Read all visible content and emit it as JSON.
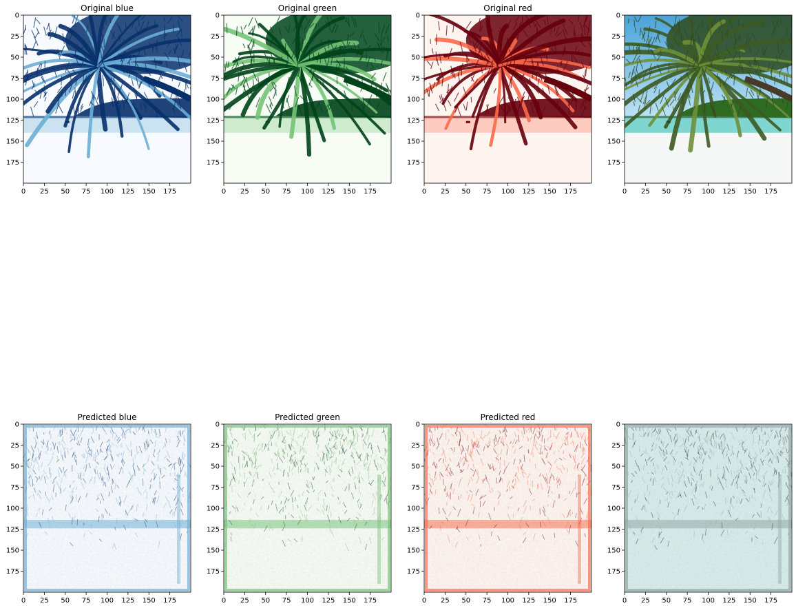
{
  "figure": {
    "background": "#ffffff",
    "tick_values": [
      0,
      25,
      50,
      75,
      100,
      125,
      150,
      175
    ],
    "axis_limits": {
      "x": [
        0,
        200
      ],
      "y": [
        200,
        0
      ]
    },
    "panels": [
      {
        "id": "orig-blue",
        "title": "Original blue",
        "row": 0,
        "col": 0,
        "colormap": "Blues",
        "kind": "original",
        "image": "beach with palm fronds, blue channel"
      },
      {
        "id": "orig-green",
        "title": "Original green",
        "row": 0,
        "col": 1,
        "colormap": "Greens",
        "kind": "original",
        "image": "beach with palm fronds, green channel"
      },
      {
        "id": "orig-red",
        "title": "Original red",
        "row": 0,
        "col": 2,
        "colormap": "Reds",
        "kind": "original",
        "image": "beach with palm fronds, red channel"
      },
      {
        "id": "orig-rgb",
        "title": "",
        "row": 0,
        "col": 3,
        "colormap": "rgb",
        "kind": "original",
        "image": "beach with palm fronds, full color"
      },
      {
        "id": "pred-blue",
        "title": "Predicted blue",
        "row": 1,
        "col": 0,
        "colormap": "Blues",
        "kind": "predicted",
        "image": "noisy prediction, blue channel"
      },
      {
        "id": "pred-green",
        "title": "Predicted green",
        "row": 1,
        "col": 1,
        "colormap": "Greens",
        "kind": "predicted",
        "image": "noisy prediction, green channel"
      },
      {
        "id": "pred-red",
        "title": "Predicted red",
        "row": 1,
        "col": 2,
        "colormap": "Reds",
        "kind": "predicted",
        "image": "noisy prediction, red channel"
      },
      {
        "id": "pred-rgb",
        "title": "",
        "row": 1,
        "col": 3,
        "colormap": "gray-teal",
        "kind": "predicted",
        "image": "noisy prediction, recombined"
      }
    ],
    "palettes": {
      "Blues": {
        "light": "#f7fbff",
        "mid": "#6baed6",
        "dark": "#08306b"
      },
      "Greens": {
        "light": "#f7fcf5",
        "mid": "#74c476",
        "dark": "#00441b"
      },
      "Reds": {
        "light": "#fff5f0",
        "mid": "#fb6a4a",
        "dark": "#67000d"
      },
      "rgb": {
        "sky": "#4aa3d8",
        "sky_light": "#bfe3f5",
        "palm": "#2e4a1e",
        "island": "#2f6b22",
        "sea": "#7fd6d0",
        "sand": "#f5f7f6"
      },
      "gray-teal": {
        "light": "#d6ecea",
        "mid": "#8fa8a6",
        "dark": "#1f2b2a"
      }
    }
  }
}
